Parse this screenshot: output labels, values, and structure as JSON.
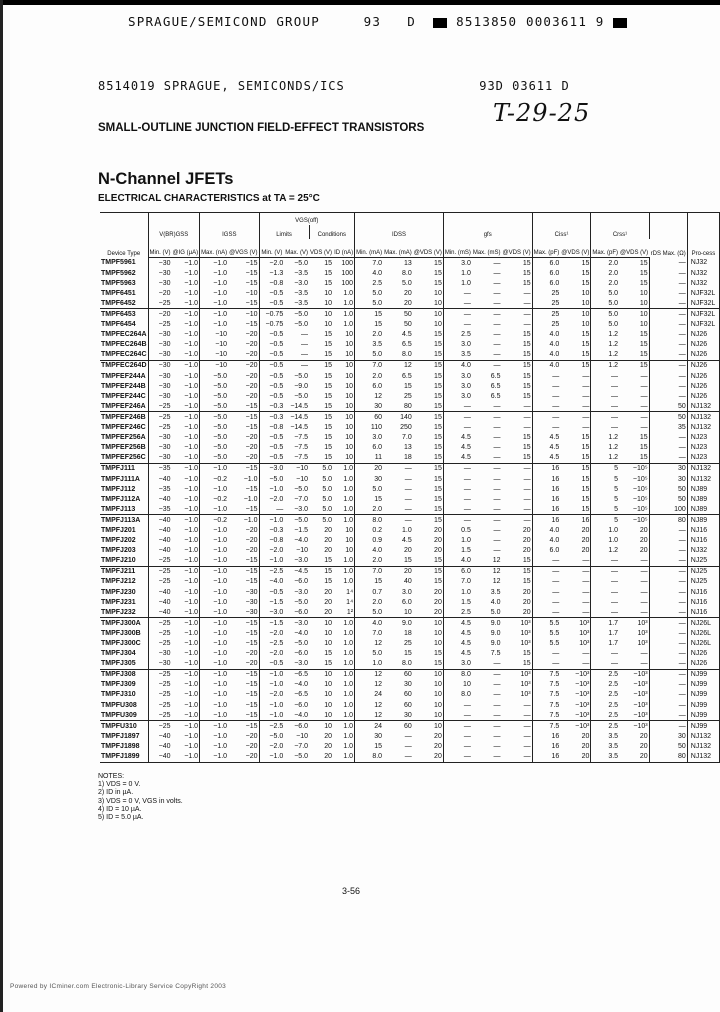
{
  "header": {
    "line1_left": "SPRAGUE/SEMICOND GROUP",
    "line1_code1": "93",
    "line1_code2": "D",
    "line1_code3": "8513850 0003611 9",
    "line2_left": "8514019 SPRAGUE, SEMICONDS/ICS",
    "line2_right": "93D 03611 D",
    "handwritten": "T-29-25"
  },
  "section_title": "SMALL-OUTLINE JUNCTION FIELD-EFFECT TRANSISTORS",
  "page_title": "N-Channel JFETs",
  "subtitle": "ELECTRICAL CHARACTERISTICS at TA = 25°C",
  "table": {
    "group_headers": {
      "device": "Device Type",
      "vbrgss": "V(BR)GSS",
      "igss": "IGSS",
      "vgsoff": "VGS(off)",
      "limits": "Limits",
      "conditions": "Conditions",
      "idss": "IDSS",
      "gfs": "gfs",
      "ciss": "Ciss¹",
      "crss": "Crss¹",
      "rds": "rDS Max. (Ω)",
      "process": "Pro-cess"
    },
    "sub_headers": [
      "Min. (V)",
      "@IG (µA)",
      "Max. (nA)",
      "@VGS (V)",
      "Min. (V)",
      "Max. (V)",
      "VDS (V)",
      "ID (nA)",
      "Min. (mA)",
      "Max. (mA)",
      "@VDS (V)",
      "Min. (mS)",
      "Max. (mS)",
      "@VDS (V)",
      "Max. (pF)",
      "@VDS (V)",
      "Max. (pF)",
      "@VDS (V)"
    ],
    "groups_start": [
      0,
      3,
      5,
      7,
      10,
      15,
      18,
      20,
      25,
      29,
      35,
      40,
      46
    ],
    "rows": [
      [
        "TMPF5961",
        "−30",
        "−1.0",
        "−1.0",
        "−15",
        "−2.0",
        "−5.0",
        "15",
        "100",
        "7.0",
        "13",
        "15",
        "3.0",
        "—",
        "15",
        "6.0",
        "15",
        "2.0",
        "15",
        "—",
        "NJ32"
      ],
      [
        "TMPF5962",
        "−30",
        "−1.0",
        "−1.0",
        "−15",
        "−1.3",
        "−3.5",
        "15",
        "100",
        "4.0",
        "8.0",
        "15",
        "1.0",
        "—",
        "15",
        "6.0",
        "15",
        "2.0",
        "15",
        "—",
        "NJ32"
      ],
      [
        "TMPF5963",
        "−30",
        "−1.0",
        "−1.0",
        "−15",
        "−0.8",
        "−3.0",
        "15",
        "100",
        "2.5",
        "5.0",
        "15",
        "1.0",
        "—",
        "15",
        "6.0",
        "15",
        "2.0",
        "15",
        "—",
        "NJ32"
      ],
      [
        "TMPF6451",
        "−20",
        "−1.0",
        "−1.0",
        "−10",
        "−0.5",
        "−3.5",
        "10",
        "1.0",
        "5.0",
        "20",
        "10",
        "—",
        "—",
        "—",
        "25",
        "10",
        "5.0",
        "10",
        "—",
        "NJF32L"
      ],
      [
        "TMPF6452",
        "−25",
        "−1.0",
        "−1.0",
        "−15",
        "−0.5",
        "−3.5",
        "10",
        "1.0",
        "5.0",
        "20",
        "10",
        "—",
        "—",
        "—",
        "25",
        "10",
        "5.0",
        "10",
        "—",
        "NJF32L"
      ],
      [
        "TMPF6453",
        "−20",
        "−1.0",
        "−1.0",
        "−10",
        "−0.75",
        "−5.0",
        "10",
        "1.0",
        "15",
        "50",
        "10",
        "—",
        "—",
        "—",
        "25",
        "10",
        "5.0",
        "10",
        "—",
        "NJF32L"
      ],
      [
        "TMPF6454",
        "−25",
        "−1.0",
        "−1.0",
        "−15",
        "−0.75",
        "−5.0",
        "10",
        "1.0",
        "15",
        "50",
        "10",
        "—",
        "—",
        "—",
        "25",
        "10",
        "5.0",
        "10",
        "—",
        "NJF32L"
      ],
      [
        "TMPFEC264A",
        "−30",
        "−1.0",
        "−10",
        "−20",
        "−0.5",
        "—",
        "15",
        "10",
        "2.0",
        "4.5",
        "15",
        "2.5",
        "—",
        "15",
        "4.0",
        "15",
        "1.2",
        "15",
        "—",
        "NJ26"
      ],
      [
        "TMPFEC264B",
        "−30",
        "−1.0",
        "−10",
        "−20",
        "−0.5",
        "—",
        "15",
        "10",
        "3.5",
        "6.5",
        "15",
        "3.0",
        "—",
        "15",
        "4.0",
        "15",
        "1.2",
        "15",
        "—",
        "NJ26"
      ],
      [
        "TMPFEC264C",
        "−30",
        "−1.0",
        "−10",
        "−20",
        "−0.5",
        "—",
        "15",
        "10",
        "5.0",
        "8.0",
        "15",
        "3.5",
        "—",
        "15",
        "4.0",
        "15",
        "1.2",
        "15",
        "—",
        "NJ26"
      ],
      [
        "TMPFEC264D",
        "−30",
        "−1.0",
        "−10",
        "−20",
        "−0.5",
        "—",
        "15",
        "10",
        "7.0",
        "12",
        "15",
        "4.0",
        "—",
        "15",
        "4.0",
        "15",
        "1.2",
        "15",
        "—",
        "NJ26"
      ],
      [
        "TMPFEF244A",
        "−30",
        "−1.0",
        "−5.0",
        "−20",
        "−0.5",
        "−5.0",
        "15",
        "10",
        "2.0",
        "6.5",
        "15",
        "3.0",
        "6.5",
        "15",
        "—",
        "—",
        "—",
        "—",
        "—",
        "NJ26"
      ],
      [
        "TMPFEF244B",
        "−30",
        "−1.0",
        "−5.0",
        "−20",
        "−0.5",
        "−9.0",
        "15",
        "10",
        "6.0",
        "15",
        "15",
        "3.0",
        "6.5",
        "15",
        "—",
        "—",
        "—",
        "—",
        "—",
        "NJ26"
      ],
      [
        "TMPFEF244C",
        "−30",
        "−1.0",
        "−5.0",
        "−20",
        "−0.5",
        "−5.0",
        "15",
        "10",
        "12",
        "25",
        "15",
        "3.0",
        "6.5",
        "15",
        "—",
        "—",
        "—",
        "—",
        "—",
        "NJ26"
      ],
      [
        "TMPFEF246A",
        "−25",
        "−1.0",
        "−5.0",
        "−15",
        "−0.3",
        "−14.5",
        "15",
        "10",
        "30",
        "80",
        "15",
        "—",
        "—",
        "—",
        "—",
        "—",
        "—",
        "—",
        "50",
        "NJ132"
      ],
      [
        "TMPFEF246B",
        "−25",
        "−1.0",
        "−5.0",
        "−15",
        "−0.3",
        "−14.5",
        "15",
        "10",
        "60",
        "140",
        "15",
        "—",
        "—",
        "—",
        "—",
        "—",
        "—",
        "—",
        "50",
        "NJ132"
      ],
      [
        "TMPFEF246C",
        "−25",
        "−1.0",
        "−5.0",
        "−15",
        "−0.8",
        "−14.5",
        "15",
        "10",
        "110",
        "250",
        "15",
        "—",
        "—",
        "—",
        "—",
        "—",
        "—",
        "—",
        "35",
        "NJ132"
      ],
      [
        "TMPFEF256A",
        "−30",
        "−1.0",
        "−5.0",
        "−20",
        "−0.5",
        "−7.5",
        "15",
        "10",
        "3.0",
        "7.0",
        "15",
        "4.5",
        "—",
        "15",
        "4.5",
        "15",
        "1.2",
        "15",
        "—",
        "NJ23"
      ],
      [
        "TMPFEF256B",
        "−30",
        "−1.0",
        "−5.0",
        "−20",
        "−0.5",
        "−7.5",
        "15",
        "10",
        "6.0",
        "13",
        "15",
        "4.5",
        "—",
        "15",
        "4.5",
        "15",
        "1.2",
        "15",
        "—",
        "NJ23"
      ],
      [
        "TMPFEF256C",
        "−30",
        "−1.0",
        "−5.0",
        "−20",
        "−0.5",
        "−7.5",
        "15",
        "10",
        "11",
        "18",
        "15",
        "4.5",
        "—",
        "15",
        "4.5",
        "15",
        "1.2",
        "15",
        "—",
        "NJ23"
      ],
      [
        "TMPFJ111",
        "−35",
        "−1.0",
        "−1.0",
        "−15",
        "−3.0",
        "−10",
        "5.0",
        "1.0",
        "20",
        "—",
        "15",
        "—",
        "—",
        "—",
        "16",
        "15",
        "5",
        "−10⁵",
        "30",
        "NJ132"
      ],
      [
        "TMPFJ111A",
        "−40",
        "−1.0",
        "−0.2",
        "−1.0",
        "−5.0",
        "−10",
        "5.0",
        "1.0",
        "30",
        "—",
        "15",
        "—",
        "—",
        "—",
        "16",
        "15",
        "5",
        "−10⁵",
        "30",
        "NJ132"
      ],
      [
        "TMPFJ112",
        "−35",
        "−1.0",
        "−1.0",
        "−15",
        "−1.0",
        "−5.0",
        "5.0",
        "1.0",
        "5.0",
        "—",
        "15",
        "—",
        "—",
        "—",
        "16",
        "15",
        "5",
        "−10⁵",
        "50",
        "NJ89"
      ],
      [
        "TMPFJ112A",
        "−40",
        "−1.0",
        "−0.2",
        "−1.0",
        "−2.0",
        "−7.0",
        "5.0",
        "1.0",
        "15",
        "—",
        "15",
        "—",
        "—",
        "—",
        "16",
        "15",
        "5",
        "−10⁵",
        "50",
        "NJ89"
      ],
      [
        "TMPFJ113",
        "−35",
        "−1.0",
        "−1.0",
        "−15",
        "—",
        "−3.0",
        "5.0",
        "1.0",
        "2.0",
        "—",
        "15",
        "—",
        "—",
        "—",
        "16",
        "15",
        "5",
        "−10⁵",
        "100",
        "NJ89"
      ],
      [
        "TMPFJ113A",
        "−40",
        "−1.0",
        "−0.2",
        "−1.0",
        "−1.0",
        "−5.0",
        "5.0",
        "1.0",
        "8.0",
        "—",
        "15",
        "—",
        "—",
        "—",
        "16",
        "16",
        "5",
        "−10⁵",
        "80",
        "NJ89"
      ],
      [
        "TMPFJ201",
        "−40",
        "−1.0",
        "−1.0",
        "−20",
        "−0.3",
        "−1.5",
        "20",
        "10",
        "0.2",
        "1.0",
        "20",
        "0.5",
        "—",
        "20",
        "4.0",
        "20",
        "1.0",
        "20",
        "—",
        "NJ16"
      ],
      [
        "TMPFJ202",
        "−40",
        "−1.0",
        "−1.0",
        "−20",
        "−0.8",
        "−4.0",
        "20",
        "10",
        "0.9",
        "4.5",
        "20",
        "1.0",
        "—",
        "20",
        "4.0",
        "20",
        "1.0",
        "20",
        "—",
        "NJ16"
      ],
      [
        "TMPFJ203",
        "−40",
        "−1.0",
        "−1.0",
        "−20",
        "−2.0",
        "−10",
        "20",
        "10",
        "4.0",
        "20",
        "20",
        "1.5",
        "—",
        "20",
        "6.0",
        "20",
        "1.2",
        "20",
        "—",
        "NJ32"
      ],
      [
        "TMPFJ210",
        "−25",
        "−1.0",
        "−1.0",
        "−15",
        "−1.0",
        "−3.0",
        "15",
        "1.0",
        "2.0",
        "15",
        "15",
        "4.0",
        "12",
        "15",
        "—",
        "—",
        "—",
        "—",
        "—",
        "NJ25"
      ],
      [
        "TMPFJ211",
        "−25",
        "−1.0",
        "−1.0",
        "−15",
        "−2.5",
        "−4.5",
        "15",
        "1.0",
        "7.0",
        "20",
        "15",
        "6.0",
        "12",
        "15",
        "—",
        "—",
        "—",
        "—",
        "—",
        "NJ25"
      ],
      [
        "TMPFJ212",
        "−25",
        "−1.0",
        "−1.0",
        "−15",
        "−4.0",
        "−6.0",
        "15",
        "1.0",
        "15",
        "40",
        "15",
        "7.0",
        "12",
        "15",
        "—",
        "—",
        "—",
        "—",
        "—",
        "NJ25"
      ],
      [
        "TMPFJ230",
        "−40",
        "−1.0",
        "−1.0",
        "−30",
        "−0.5",
        "−3.0",
        "20",
        "1⁴",
        "0.7",
        "3.0",
        "20",
        "1.0",
        "3.5",
        "20",
        "—",
        "—",
        "—",
        "—",
        "—",
        "NJ16"
      ],
      [
        "TMPFJ231",
        "−40",
        "−1.0",
        "−1.0",
        "−30",
        "−1.5",
        "−5.0",
        "20",
        "1⁴",
        "2.0",
        "6.0",
        "20",
        "1.5",
        "4.0",
        "20",
        "—",
        "—",
        "—",
        "—",
        "—",
        "NJ16"
      ],
      [
        "TMPFJ232",
        "−40",
        "−1.0",
        "−1.0",
        "−30",
        "−3.0",
        "−6.0",
        "20",
        "1²",
        "5.0",
        "10",
        "20",
        "2.5",
        "5.0",
        "20",
        "—",
        "—",
        "—",
        "—",
        "—",
        "NJ16"
      ],
      [
        "TMPFJ300A",
        "−25",
        "−1.0",
        "−1.0",
        "−15",
        "−1.5",
        "−3.0",
        "10",
        "1.0",
        "4.0",
        "9.0",
        "10",
        "4.5",
        "9.0",
        "10³",
        "5.5",
        "10³",
        "1.7",
        "10³",
        "—",
        "NJ26L"
      ],
      [
        "TMPFJ300B",
        "−25",
        "−1.0",
        "−1.0",
        "−15",
        "−2.0",
        "−4.0",
        "10",
        "1.0",
        "7.0",
        "18",
        "10",
        "4.5",
        "9.0",
        "10³",
        "5.5",
        "10³",
        "1.7",
        "10³",
        "—",
        "NJ26L"
      ],
      [
        "TMPFJ300C",
        "−25",
        "−1.0",
        "−1.0",
        "−15",
        "−2.5",
        "−5.0",
        "10",
        "1.0",
        "12",
        "25",
        "10",
        "4.5",
        "9.0",
        "10³",
        "5.5",
        "10³",
        "1.7",
        "10³",
        "—",
        "NJ26L"
      ],
      [
        "TMPFJ304",
        "−30",
        "−1.0",
        "−1.0",
        "−20",
        "−2.0",
        "−6.0",
        "15",
        "1.0",
        "5.0",
        "15",
        "15",
        "4.5",
        "7.5",
        "15",
        "—",
        "—",
        "—",
        "—",
        "—",
        "NJ26"
      ],
      [
        "TMPFJ305",
        "−30",
        "−1.0",
        "−1.0",
        "−20",
        "−0.5",
        "−3.0",
        "15",
        "1.0",
        "1.0",
        "8.0",
        "15",
        "3.0",
        "—",
        "15",
        "—",
        "—",
        "—",
        "—",
        "—",
        "NJ26"
      ],
      [
        "TMPFJ308",
        "−25",
        "−1.0",
        "−1.0",
        "−15",
        "−1.0",
        "−6.5",
        "10",
        "1.0",
        "12",
        "60",
        "10",
        "8.0",
        "—",
        "10³",
        "7.5",
        "−10³",
        "2.5",
        "−10³",
        "—",
        "NJ99"
      ],
      [
        "TMPFJ309",
        "−25",
        "−1.0",
        "−1.0",
        "−15",
        "−1.0",
        "−4.0",
        "10",
        "1.0",
        "12",
        "30",
        "10",
        "10",
        "—",
        "10³",
        "7.5",
        "−10³",
        "2.5",
        "−10³",
        "—",
        "NJ99"
      ],
      [
        "TMPFJ310",
        "−25",
        "−1.0",
        "−1.0",
        "−15",
        "−2.0",
        "−6.5",
        "10",
        "1.0",
        "24",
        "60",
        "10",
        "8.0",
        "—",
        "10³",
        "7.5",
        "−10³",
        "2.5",
        "−10³",
        "—",
        "NJ99"
      ],
      [
        "TMPFU308",
        "−25",
        "−1.0",
        "−1.0",
        "−15",
        "−1.0",
        "−6.0",
        "10",
        "1.0",
        "12",
        "60",
        "10",
        "—",
        "—",
        "—",
        "7.5",
        "−10³",
        "2.5",
        "−10³",
        "—",
        "NJ99"
      ],
      [
        "TMPFU309",
        "−25",
        "−1.0",
        "−1.0",
        "−15",
        "−1.0",
        "−4.0",
        "10",
        "1.0",
        "12",
        "30",
        "10",
        "—",
        "—",
        "—",
        "7.5",
        "−10³",
        "2.5",
        "−10³",
        "—",
        "NJ99"
      ],
      [
        "TMPFU310",
        "−25",
        "−1.0",
        "−1.0",
        "−15",
        "−2.5",
        "−6.0",
        "10",
        "1.0",
        "24",
        "60",
        "10",
        "—",
        "—",
        "—",
        "7.5",
        "−10³",
        "2.5",
        "−10³",
        "—",
        "NJ99"
      ],
      [
        "TMPFJ1897",
        "−40",
        "−1.0",
        "−1.0",
        "−20",
        "−5.0",
        "−10",
        "20",
        "1.0",
        "30",
        "—",
        "20",
        "—",
        "—",
        "—",
        "16",
        "20",
        "3.5",
        "20",
        "30",
        "NJ132"
      ],
      [
        "TMPFJ1898",
        "−40",
        "−1.0",
        "−1.0",
        "−20",
        "−2.0",
        "−7.0",
        "20",
        "1.0",
        "15",
        "—",
        "20",
        "—",
        "—",
        "—",
        "16",
        "20",
        "3.5",
        "20",
        "50",
        "NJ132"
      ],
      [
        "TMPFJ1899",
        "−40",
        "−1.0",
        "−1.0",
        "−20",
        "−1.0",
        "−5.0",
        "20",
        "1.0",
        "8.0",
        "—",
        "20",
        "—",
        "—",
        "—",
        "16",
        "20",
        "3.5",
        "20",
        "80",
        "NJ132"
      ]
    ]
  },
  "notes": {
    "title": "NOTES:",
    "items": [
      "1) VDS = 0 V.",
      "2) ID in µA.",
      "3) VDS = 0 V, VGS in volts.",
      "4) ID = 10 µA.",
      "5) ID = 5.0 µA."
    ]
  },
  "page_number": "3-56",
  "footer": "Powered by ICminer.com Electronic-Library Service CopyRight 2003"
}
